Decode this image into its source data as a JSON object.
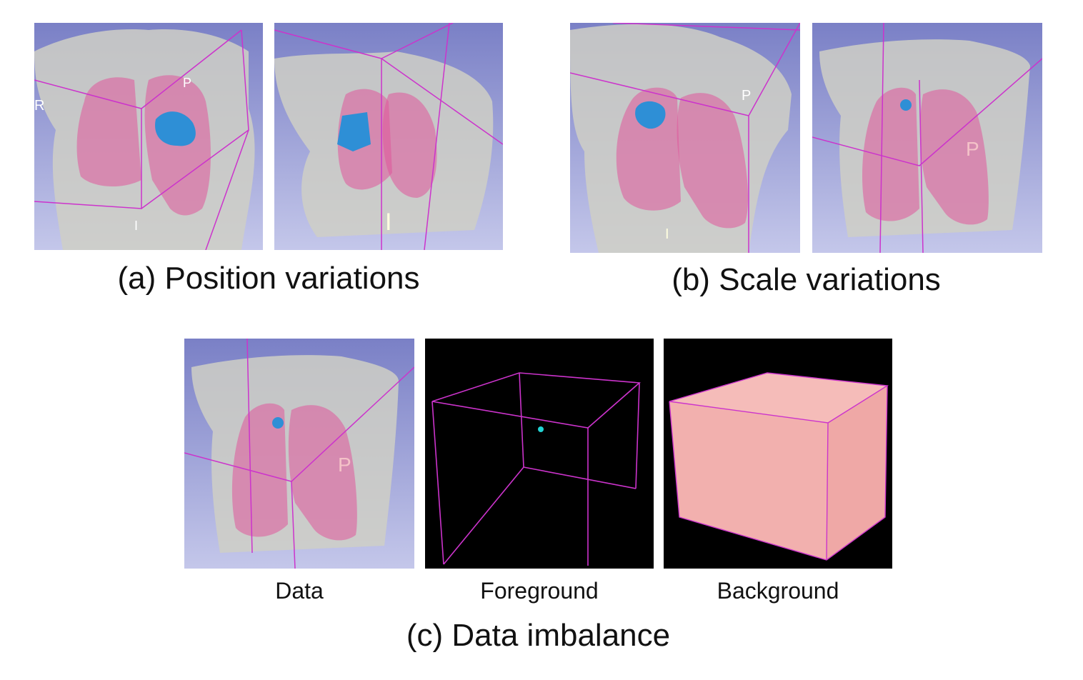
{
  "figure": {
    "sections": {
      "a": {
        "caption": "(a) Position variations"
      },
      "b": {
        "caption": "(b) Scale variations"
      },
      "c": {
        "caption": "(c) Data imbalance",
        "sub_labels": [
          "Data",
          "Foreground",
          "Background"
        ]
      }
    },
    "orientation_markers": {
      "a1": [
        "R",
        "P",
        "I"
      ],
      "a2": [
        "I"
      ],
      "b1": [
        "P",
        "I"
      ],
      "b2": [
        "P"
      ],
      "c1": [
        "P"
      ]
    },
    "colors": {
      "render_background_top": "#7b80c8",
      "render_background_bottom": "#c3c6ea",
      "body": "#c9c9c4",
      "lung": "#e0569a",
      "tumor": "#2e8fd6",
      "bounding_lines": "#cc33cc",
      "black_background": "#000000",
      "foreground_voxel": "#22d3d3",
      "background_cube": "#f2b0ae"
    }
  }
}
